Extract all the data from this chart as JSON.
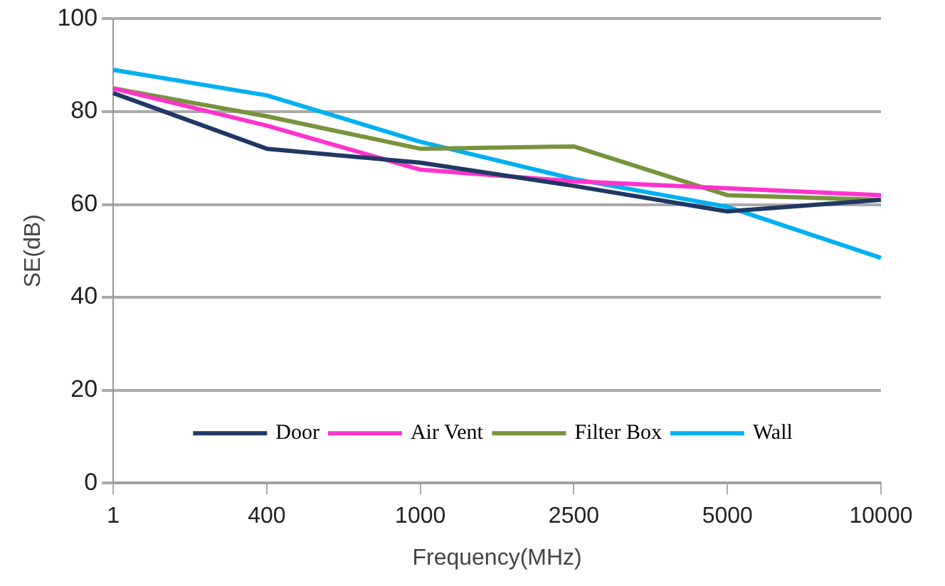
{
  "chart_data": {
    "type": "line",
    "xlabel": "Frequency(MHz)",
    "ylabel": "SE(dB)",
    "categories": [
      "1",
      "400",
      "1000",
      "2500",
      "5000",
      "10000"
    ],
    "series": [
      {
        "name": "Door",
        "color": "#1f3864",
        "values": [
          84,
          72,
          69,
          64,
          58.5,
          61
        ]
      },
      {
        "name": "Air Vent",
        "color": "#ff33cc",
        "values": [
          85,
          77,
          67.5,
          65,
          63.5,
          62
        ]
      },
      {
        "name": "Filter Box",
        "color": "#77933c",
        "values": [
          85,
          79,
          72,
          72.5,
          62,
          61
        ]
      },
      {
        "name": "Wall",
        "color": "#00b0f0",
        "values": [
          89,
          83.5,
          73.5,
          65.5,
          59.5,
          48.5
        ]
      }
    ],
    "ylim": [
      0,
      100
    ],
    "yticks": [
      0,
      20,
      40,
      60,
      80,
      100
    ],
    "grid": "y",
    "legend": "bottom",
    "marker": "none",
    "line_style": "solid"
  }
}
